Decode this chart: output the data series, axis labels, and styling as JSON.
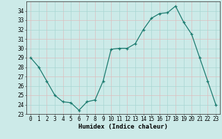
{
  "x": [
    0,
    1,
    2,
    3,
    4,
    5,
    6,
    7,
    8,
    9,
    10,
    11,
    12,
    13,
    14,
    15,
    16,
    17,
    18,
    19,
    20,
    21,
    22,
    23
  ],
  "y": [
    29.0,
    28.0,
    26.5,
    25.0,
    24.3,
    24.2,
    23.4,
    24.3,
    24.5,
    26.5,
    29.9,
    30.0,
    30.0,
    30.5,
    32.0,
    33.2,
    33.7,
    33.8,
    34.5,
    32.8,
    31.5,
    29.0,
    26.5,
    24.0
  ],
  "line_color": "#1a7a6e",
  "marker": "+",
  "bg_color": "#cceae8",
  "grid_color_teal": "#a8d5d2",
  "grid_color_pink": "#ddbdbd",
  "xlabel": "Humidex (Indice chaleur)",
  "ylim": [
    23,
    35
  ],
  "yticks": [
    23,
    24,
    25,
    26,
    27,
    28,
    29,
    30,
    31,
    32,
    33,
    34
  ],
  "xticks": [
    0,
    1,
    2,
    3,
    4,
    5,
    6,
    7,
    8,
    9,
    10,
    11,
    12,
    13,
    14,
    15,
    16,
    17,
    18,
    19,
    20,
    21,
    22,
    23
  ],
  "tick_fontsize": 5.5,
  "xlabel_fontsize": 6.5,
  "xlabel_fontweight": "bold"
}
